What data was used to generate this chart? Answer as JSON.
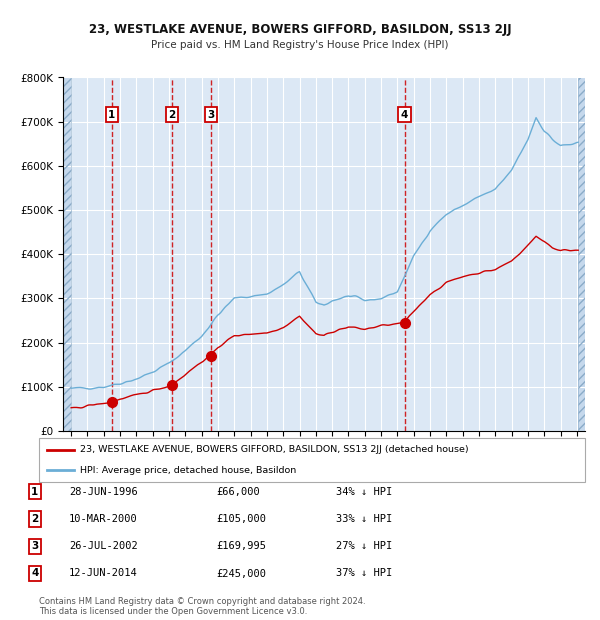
{
  "title": "23, WESTLAKE AVENUE, BOWERS GIFFORD, BASILDON, SS13 2JJ",
  "subtitle": "Price paid vs. HM Land Registry's House Price Index (HPI)",
  "transactions": [
    {
      "num": 1,
      "date": 1996.49,
      "price": 66000,
      "label": "28-JUN-1996",
      "price_str": "£66,000",
      "pct": "34% ↓ HPI"
    },
    {
      "num": 2,
      "date": 2000.19,
      "price": 105000,
      "label": "10-MAR-2000",
      "price_str": "£105,000",
      "pct": "33% ↓ HPI"
    },
    {
      "num": 3,
      "date": 2002.57,
      "price": 169995,
      "label": "26-JUL-2002",
      "price_str": "£169,995",
      "pct": "27% ↓ HPI"
    },
    {
      "num": 4,
      "date": 2014.44,
      "price": 245000,
      "label": "12-JUN-2014",
      "price_str": "£245,000",
      "pct": "37% ↓ HPI"
    }
  ],
  "hpi_color": "#6baed6",
  "price_color": "#cc0000",
  "marker_color": "#cc0000",
  "vline_color": "#cc0000",
  "plot_bg": "#dce8f5",
  "grid_color": "#ffffff",
  "ylim": [
    0,
    800000
  ],
  "yticks": [
    0,
    100000,
    200000,
    300000,
    400000,
    500000,
    600000,
    700000,
    800000
  ],
  "xlim": [
    1993.5,
    2025.5
  ],
  "xticks": [
    1994,
    1995,
    1996,
    1997,
    1998,
    1999,
    2000,
    2001,
    2002,
    2003,
    2004,
    2005,
    2006,
    2007,
    2008,
    2009,
    2010,
    2011,
    2012,
    2013,
    2014,
    2015,
    2016,
    2017,
    2018,
    2019,
    2020,
    2021,
    2022,
    2023,
    2024,
    2025
  ],
  "legend_line1": "23, WESTLAKE AVENUE, BOWERS GIFFORD, BASILDON, SS13 2JJ (detached house)",
  "legend_line2": "HPI: Average price, detached house, Basildon",
  "footer1": "Contains HM Land Registry data © Crown copyright and database right 2024.",
  "footer2": "This data is licensed under the Open Government Licence v3.0."
}
